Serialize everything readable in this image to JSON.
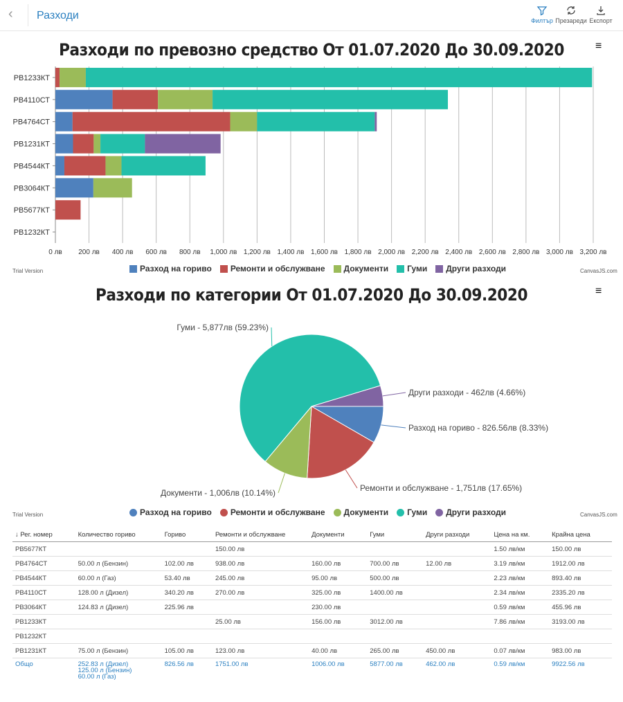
{
  "header": {
    "title": "Разходи",
    "back_icon": "chevron-left-icon",
    "tools": [
      {
        "label": "Филтър",
        "icon": "filter-icon"
      },
      {
        "label": "Презареди",
        "icon": "refresh-icon"
      },
      {
        "label": "Експорт",
        "icon": "download-icon"
      }
    ]
  },
  "colors": {
    "fuel": "#4f81bd",
    "repairs": "#c0504d",
    "documents": "#9bbb59",
    "tires": "#23bfaa",
    "other": "#8064a2"
  },
  "bar_chart": {
    "menu": "≡",
    "trial": "Trial Version",
    "credit": "CanvasJS.com"
  },
  "pie_chart": {
    "menu": "≡",
    "trial": "Trial Version",
    "credit": "CanvasJS.com"
  },
  "chart_data": [
    {
      "type": "bar",
      "stacked": true,
      "orientation": "horizontal",
      "title": "Разходи по превозно средство От 01.07.2020 До 30.09.2020",
      "categories": [
        "РВ1233КТ",
        "РВ4110СТ",
        "РВ4764СТ",
        "РВ1231КТ",
        "РВ4544КТ",
        "РВ3064КТ",
        "РВ5677КТ",
        "РВ1232КТ"
      ],
      "series": [
        {
          "name": "Разход на гориво",
          "values": [
            0,
            340.2,
            102,
            105,
            53.4,
            225.96,
            0,
            0
          ]
        },
        {
          "name": "Ремонти и обслужване",
          "values": [
            25,
            270,
            938,
            123,
            245,
            0,
            150,
            0
          ]
        },
        {
          "name": "Документи",
          "values": [
            156,
            325,
            160,
            40,
            95,
            230,
            0,
            0
          ]
        },
        {
          "name": "Гуми",
          "values": [
            3012,
            1400,
            700,
            265,
            500,
            0,
            0,
            0
          ]
        },
        {
          "name": "Други разходи",
          "values": [
            0,
            0,
            12,
            450,
            0,
            0,
            0,
            0
          ]
        }
      ],
      "xlim": [
        0,
        3200
      ],
      "xticks": [
        "0 лв",
        "200 лв",
        "400 лв",
        "600 лв",
        "800 лв",
        "1,000 лв",
        "1,200 лв",
        "1,400 лв",
        "1,600 лв",
        "1,800 лв",
        "2,000 лв",
        "2,200 лв",
        "2,400 лв",
        "2,600 лв",
        "2,800 лв",
        "3,000 лв",
        "3,200 лв"
      ],
      "grid": true,
      "legend_position": "bottom"
    },
    {
      "type": "pie",
      "title": "Разходи по категории От 01.07.2020 До 30.09.2020",
      "labels": [
        "Разход на гориво",
        "Ремонти и обслужване",
        "Документи",
        "Гуми",
        "Други разходи"
      ],
      "values": [
        826.56,
        1751,
        1006,
        5877,
        462
      ],
      "data_labels": [
        "Разход на гориво - 826.56лв (8.33%)",
        "Ремонти и обслужване - 1,751лв (17.65%)",
        "Документи - 1,006лв (10.14%)",
        "Гуми - 5,877лв (59.23%)",
        "Други разходи - 462лв (4.66%)"
      ],
      "legend_position": "bottom"
    }
  ],
  "table": {
    "columns": [
      "↓ Рег. номер",
      "Количество гориво",
      "Гориво",
      "Ремонти и обслужване",
      "Документи",
      "Гуми",
      "Други разходи",
      "Цена на км.",
      "Крайна цена"
    ],
    "rows": [
      [
        "РВ5677КТ",
        "",
        "",
        "150.00 лв",
        "",
        "",
        "",
        "1.50 лв/км",
        "150.00 лв"
      ],
      [
        "РВ4764СТ",
        "50.00 л (Бензин)",
        "102.00 лв",
        "938.00 лв",
        "160.00 лв",
        "700.00 лв",
        "12.00 лв",
        "3.19 лв/км",
        "1912.00 лв"
      ],
      [
        "РВ4544КТ",
        "60.00 л (Газ)",
        "53.40 лв",
        "245.00 лв",
        "95.00 лв",
        "500.00 лв",
        "",
        "2.23 лв/км",
        "893.40 лв"
      ],
      [
        "РВ4110СТ",
        "128.00 л (Дизел)",
        "340.20 лв",
        "270.00 лв",
        "325.00 лв",
        "1400.00 лв",
        "",
        "2.34 лв/км",
        "2335.20 лв"
      ],
      [
        "РВ3064КТ",
        "124.83 л (Дизел)",
        "225.96 лв",
        "",
        "230.00 лв",
        "",
        "",
        "0.59 лв/км",
        "455.96 лв"
      ],
      [
        "РВ1233КТ",
        "",
        "",
        "25.00 лв",
        "156.00 лв",
        "3012.00 лв",
        "",
        "7.86 лв/км",
        "3193.00 лв"
      ],
      [
        "РВ1232КТ",
        "",
        "",
        "",
        "",
        "",
        "",
        "",
        ""
      ],
      [
        "РВ1231КТ",
        "75.00 л (Бензин)",
        "105.00 лв",
        "123.00 лв",
        "40.00 лв",
        "265.00 лв",
        "450.00 лв",
        "0.07 лв/км",
        "983.00 лв"
      ]
    ],
    "total": [
      "Общо",
      "252.83 л (Дизел)\n125.00 л (Бензин)\n60.00 л (Газ)",
      "826.56 лв",
      "1751.00 лв",
      "1006.00 лв",
      "5877.00 лв",
      "462.00 лв",
      "0.59 лв/км",
      "9922.56 лв"
    ]
  }
}
